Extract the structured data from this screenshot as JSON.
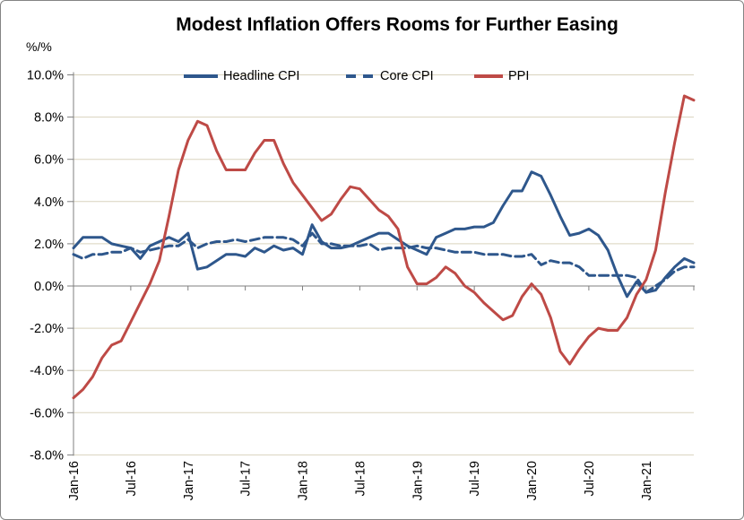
{
  "chart_data": {
    "type": "line",
    "title": "Modest Inflation Offers Rooms for Further Easing",
    "y_axis_title": "%/%",
    "frequency": "monthly",
    "n_points": 66,
    "ylim": [
      -8,
      10
    ],
    "grid": true,
    "legend_position": "top-inside",
    "y_ticks": [
      {
        "label": "10.0%",
        "value": 10
      },
      {
        "label": "8.0%",
        "value": 8
      },
      {
        "label": "6.0%",
        "value": 6
      },
      {
        "label": "4.0%",
        "value": 4
      },
      {
        "label": "2.0%",
        "value": 2
      },
      {
        "label": "0.0%",
        "value": 0
      },
      {
        "label": "-2.0%",
        "value": -2
      },
      {
        "label": "-4.0%",
        "value": -4
      },
      {
        "label": "-6.0%",
        "value": -6
      },
      {
        "label": "-8.0%",
        "value": -8
      }
    ],
    "x_ticks": [
      {
        "label": "Jan-16",
        "month_index": 0
      },
      {
        "label": "Jul-16",
        "month_index": 6
      },
      {
        "label": "Jan-17",
        "month_index": 12
      },
      {
        "label": "Jul-17",
        "month_index": 18
      },
      {
        "label": "Jan-18",
        "month_index": 24
      },
      {
        "label": "Jul-18",
        "month_index": 30
      },
      {
        "label": "Jan-19",
        "month_index": 36
      },
      {
        "label": "Jul-19",
        "month_index": 42
      },
      {
        "label": "Jan-20",
        "month_index": 48
      },
      {
        "label": "Jul-20",
        "month_index": 54
      },
      {
        "label": "Jan-21",
        "month_index": 60
      }
    ],
    "series": [
      {
        "name": "Headline CPI",
        "style": "solid",
        "color": "#2E578C",
        "values": [
          1.8,
          2.3,
          2.3,
          2.3,
          2.0,
          1.9,
          1.8,
          1.3,
          1.9,
          2.1,
          2.3,
          2.1,
          2.5,
          0.8,
          0.9,
          1.2,
          1.5,
          1.5,
          1.4,
          1.8,
          1.6,
          1.9,
          1.7,
          1.8,
          1.5,
          2.9,
          2.1,
          1.8,
          1.8,
          1.9,
          2.1,
          2.3,
          2.5,
          2.5,
          2.2,
          1.9,
          1.7,
          1.5,
          2.3,
          2.5,
          2.7,
          2.7,
          2.8,
          2.8,
          3.0,
          3.8,
          4.5,
          4.5,
          5.4,
          5.2,
          4.3,
          3.3,
          2.4,
          2.5,
          2.7,
          2.4,
          1.7,
          0.5,
          -0.5,
          0.2,
          -0.3,
          -0.2,
          0.4,
          0.9,
          1.3,
          1.1
        ]
      },
      {
        "name": "Core CPI",
        "style": "dashed",
        "color": "#2E578C",
        "values": [
          1.5,
          1.3,
          1.5,
          1.5,
          1.6,
          1.6,
          1.8,
          1.6,
          1.7,
          1.8,
          1.9,
          1.9,
          2.2,
          1.8,
          2.0,
          2.1,
          2.1,
          2.2,
          2.1,
          2.2,
          2.3,
          2.3,
          2.3,
          2.2,
          1.9,
          2.5,
          2.0,
          2.0,
          1.9,
          1.9,
          1.9,
          2.0,
          1.7,
          1.8,
          1.8,
          1.8,
          1.9,
          1.8,
          1.8,
          1.7,
          1.6,
          1.6,
          1.6,
          1.5,
          1.5,
          1.5,
          1.4,
          1.4,
          1.5,
          1.0,
          1.2,
          1.1,
          1.1,
          0.9,
          0.5,
          0.5,
          0.5,
          0.5,
          0.5,
          0.4,
          -0.3,
          0.0,
          0.3,
          0.7,
          0.9,
          0.9
        ]
      },
      {
        "name": "PPI",
        "style": "solid",
        "color": "#BE4A46",
        "values": [
          -5.3,
          -4.9,
          -4.3,
          -3.4,
          -2.8,
          -2.6,
          -1.7,
          -0.8,
          0.1,
          1.2,
          3.3,
          5.5,
          6.9,
          7.8,
          7.6,
          6.4,
          5.5,
          5.5,
          5.5,
          6.3,
          6.9,
          6.9,
          5.8,
          4.9,
          4.3,
          3.7,
          3.1,
          3.4,
          4.1,
          4.7,
          4.6,
          4.1,
          3.6,
          3.3,
          2.7,
          0.9,
          0.1,
          0.1,
          0.4,
          0.9,
          0.6,
          0.0,
          -0.3,
          -0.8,
          -1.2,
          -1.6,
          -1.4,
          -0.5,
          0.1,
          -0.4,
          -1.5,
          -3.1,
          -3.7,
          -3.0,
          -2.4,
          -2.0,
          -2.1,
          -2.1,
          -1.5,
          -0.4,
          0.3,
          1.7,
          4.4,
          6.8,
          9.0,
          8.8
        ]
      }
    ],
    "colors": {
      "blue_line": "#2E578C",
      "red_line": "#BE4A46",
      "grid": "#D9D3BE",
      "axis": "#7F7F7F",
      "text": "#000000",
      "border": "#848484",
      "background": "#FFFFFF"
    }
  }
}
